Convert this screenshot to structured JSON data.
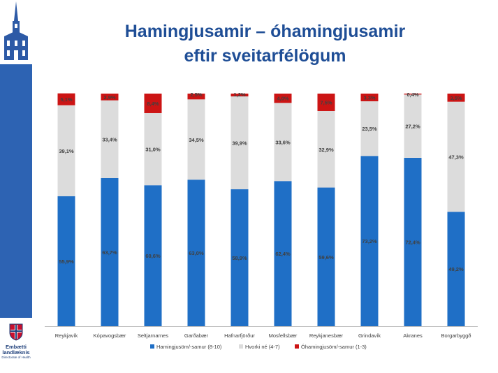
{
  "title": {
    "line1": "Hamingjusamir – óhamingjusamir",
    "line2": "eftir sveitarfélögum"
  },
  "logo": {
    "name_line1": "Embætti",
    "name_line2": "landlæknis",
    "subtitle": "Directorate of Health"
  },
  "colors": {
    "happy": "#1f6fc6",
    "neutral": "#dcdcdc",
    "unhappy": "#cc1414",
    "title": "#1f4e96",
    "sidebar": "#2d63b3"
  },
  "chart_data": {
    "type": "bar",
    "stacked": true,
    "percent_stacked": true,
    "categories": [
      "Reykjavík",
      "Kópavogsbær",
      "Seltjarnarnes",
      "Garðabær",
      "Hafnarfjörður",
      "Mosfellsbær",
      "Reykjanesbær",
      "Grindavík",
      "Akranes",
      "Borgarbyggð"
    ],
    "series": [
      {
        "name": "Hamingjusöm/-samur (8-10)",
        "color": "#1f6fc6",
        "values": [
          55.9,
          63.7,
          60.6,
          63.0,
          58.9,
          62.4,
          59.6,
          73.2,
          72.4,
          49.2
        ],
        "labels": [
          "55,9%",
          "63,7%",
          "60,6%",
          "63,0%",
          "58,9%",
          "62,4%",
          "59,6%",
          "73,2%",
          "72,4%",
          "49,2%"
        ]
      },
      {
        "name": "Hvorki né (4-7)",
        "color": "#dcdcdc",
        "values": [
          39.1,
          33.4,
          31.0,
          34.5,
          39.9,
          33.6,
          32.9,
          23.5,
          27.2,
          47.3
        ],
        "labels": [
          "39,1%",
          "33,4%",
          "31,0%",
          "34,5%",
          "39,9%",
          "33,6%",
          "32,9%",
          "23,5%",
          "27,2%",
          "47,3%"
        ]
      },
      {
        "name": "Óhamingjusöm/-samur (1-3)",
        "color": "#cc1414",
        "values": [
          5.1,
          2.9,
          8.4,
          2.5,
          1.2,
          4.0,
          7.5,
          3.3,
          0.4,
          3.5
        ],
        "labels": [
          "5,1%",
          "2,9%",
          "8,4%",
          "2,5%",
          "1,2%",
          "4,0%",
          "7,5%",
          "3,3%",
          "0,4%",
          "3,5%"
        ]
      }
    ],
    "ylim": [
      0,
      100
    ],
    "grid": false,
    "legend_position": "bottom"
  }
}
